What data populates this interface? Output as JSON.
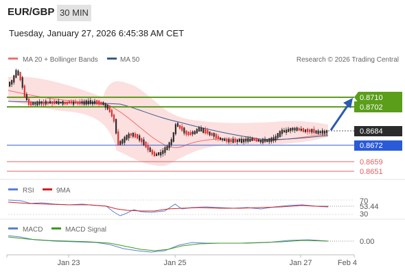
{
  "header": {
    "symbol": "EUR/GBP",
    "period": "30 MIN",
    "datetime": "Tuesday, January 27, 2026 6:45:38 AM CET"
  },
  "legend": {
    "ma20": "MA 20 + Bollinger Bands",
    "ma50": "MA 50",
    "credit": "Research © 2026 Trading Central",
    "rsi": "RSI",
    "rsi_ma": "9MA",
    "macd": "MACD",
    "macd_signal": "MACD Signal"
  },
  "colors": {
    "ma20": "#f07070",
    "ma50": "#3a5a8c",
    "resistance": "#5a9e1a",
    "support": "#2a5bd7",
    "red_level": "#e06060",
    "candle_up": "#2b2b2b",
    "candle_down": "#e03030",
    "band_fill": "#fbd4d4",
    "arrow": "#2a5bb0",
    "current_price_bg": "#2b2b2b"
  },
  "levels": {
    "resistance_2": "0.8710",
    "resistance_1": "0.8702",
    "current": "0.8684",
    "support_1": "0.8672",
    "support_2": "0.8659",
    "support_3": "0.8651"
  },
  "rsi_panel": {
    "upper": "70",
    "value": "53.44",
    "lower": "30"
  },
  "macd_panel": {
    "value": "0.00"
  },
  "x_axis": {
    "labels": [
      "Jan 23",
      "Jan 25",
      "Jan 27",
      "Feb 4"
    ]
  }
}
